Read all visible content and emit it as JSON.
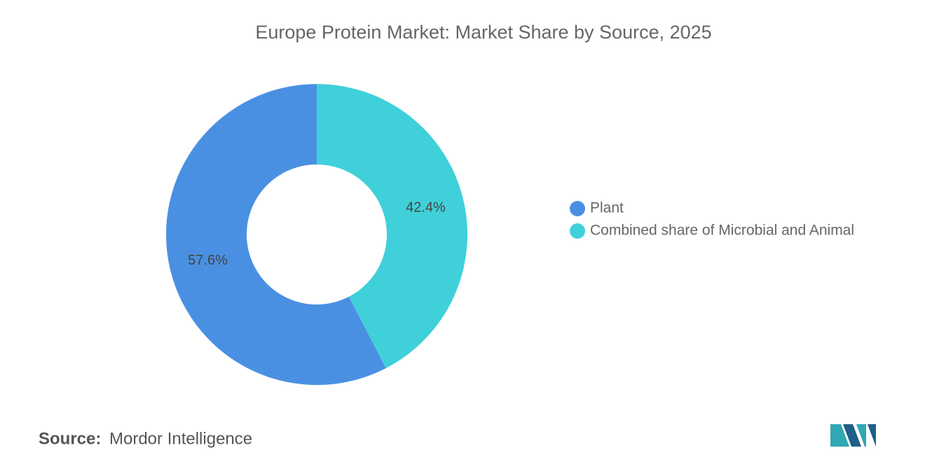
{
  "chart_data": {
    "type": "donut",
    "title": "Europe Protein Market: Market Share by Source, 2025",
    "categories": [
      "Plant",
      "Combined share of Microbial and Animal"
    ],
    "values": [
      57.6,
      42.4
    ],
    "value_labels": [
      "57.6%",
      "42.4%"
    ],
    "colors": [
      "#4a90e2",
      "#40d0da"
    ],
    "legend": "right"
  },
  "source": {
    "label": "Source:",
    "text": "Mordor Intelligence"
  }
}
